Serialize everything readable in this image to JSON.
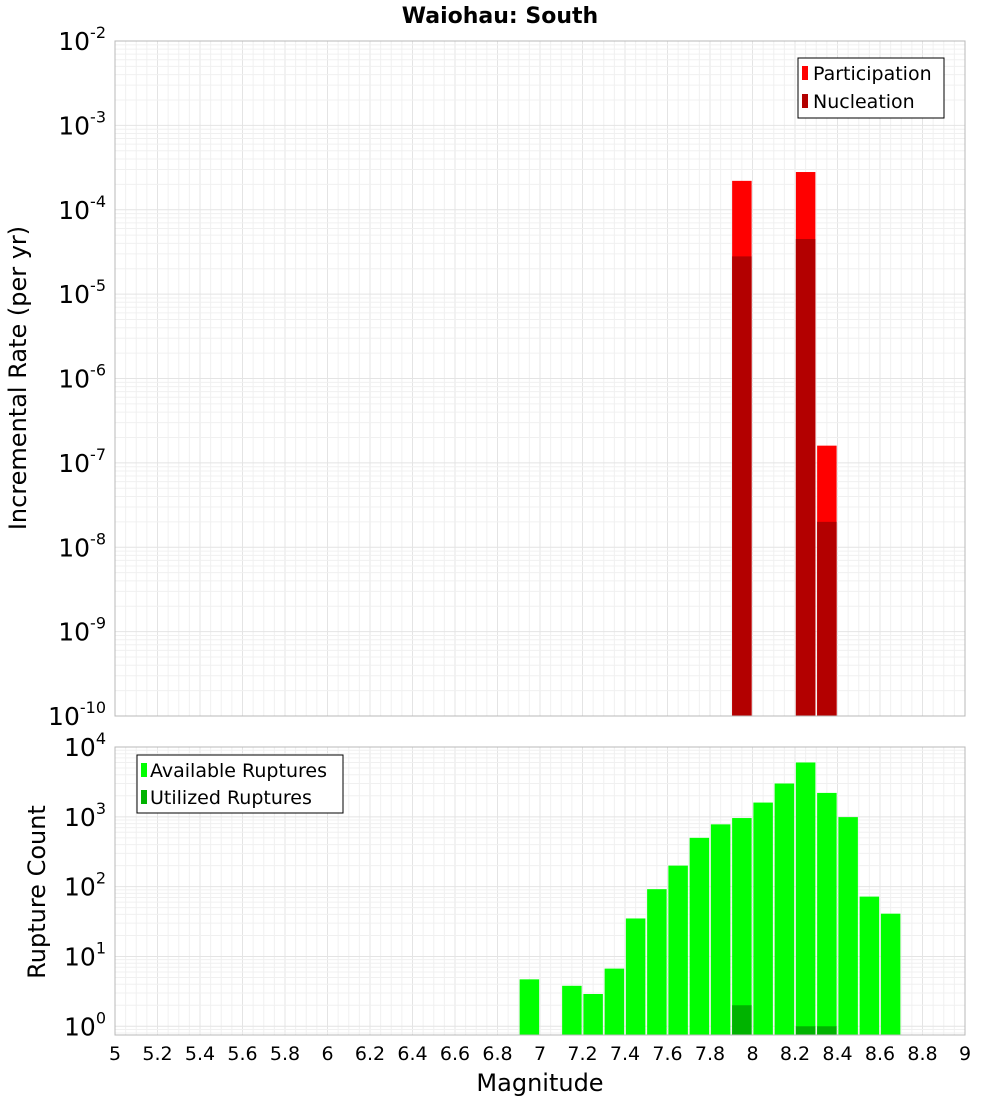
{
  "title": "Waiohau: South",
  "colors": {
    "participation": "#ff0000",
    "nucleation": "#b30000",
    "available": "#00ff00",
    "utilized": "#00b300"
  },
  "chart_data": [
    {
      "type": "bar",
      "ylabel": "Incremental Rate (per yr)",
      "yscale": "log",
      "ylim": [
        1e-10,
        0.01
      ],
      "xlim": [
        5,
        9
      ],
      "grid": true,
      "legend_position": "top-right",
      "ytick_labels": [
        {
          "base": "10",
          "exp": "-10"
        },
        {
          "base": "10",
          "exp": "-9"
        },
        {
          "base": "10",
          "exp": "-8"
        },
        {
          "base": "10",
          "exp": "-7"
        },
        {
          "base": "10",
          "exp": "-6"
        },
        {
          "base": "10",
          "exp": "-5"
        },
        {
          "base": "10",
          "exp": "-4"
        },
        {
          "base": "10",
          "exp": "-3"
        },
        {
          "base": "10",
          "exp": "-2"
        }
      ],
      "series": [
        {
          "name": "Participation",
          "x": [
            7.95,
            8.25,
            8.35
          ],
          "values": [
            0.00022,
            0.00028,
            1.6e-07
          ]
        },
        {
          "name": "Nucleation",
          "x": [
            7.95,
            8.25,
            8.35
          ],
          "values": [
            2.8e-05,
            4.5e-05,
            2e-08
          ]
        }
      ]
    },
    {
      "type": "bar",
      "xlabel": "Magnitude",
      "ylabel": "Rupture Count",
      "yscale": "log",
      "ylim": [
        0.75,
        10000
      ],
      "xlim": [
        5,
        9
      ],
      "grid": true,
      "legend_position": "top-left",
      "xtick_labels": [
        "5",
        "5.2",
        "5.4",
        "5.6",
        "5.8",
        "6",
        "6.2",
        "6.4",
        "6.6",
        "6.8",
        "7",
        "7.2",
        "7.4",
        "7.6",
        "7.8",
        "8",
        "8.2",
        "8.4",
        "8.6",
        "8.8",
        "9"
      ],
      "ytick_labels": [
        {
          "base": "10",
          "exp": "0"
        },
        {
          "base": "10",
          "exp": "1"
        },
        {
          "base": "10",
          "exp": "2"
        },
        {
          "base": "10",
          "exp": "3"
        },
        {
          "base": "10",
          "exp": "4"
        }
      ],
      "series": [
        {
          "name": "Available Ruptures",
          "x": [
            6.95,
            7.15,
            7.25,
            7.35,
            7.45,
            7.55,
            7.65,
            7.75,
            7.85,
            7.95,
            8.05,
            8.15,
            8.25,
            8.35,
            8.45,
            8.55,
            8.65
          ],
          "values": [
            4.7,
            3.8,
            2.9,
            6.7,
            35,
            92,
            200,
            500,
            780,
            960,
            1600,
            3000,
            6000,
            2200,
            990,
            72,
            41
          ]
        },
        {
          "name": "Utilized Ruptures",
          "x": [
            7.95,
            8.25,
            8.35
          ],
          "values": [
            2,
            1,
            1
          ]
        }
      ]
    }
  ]
}
